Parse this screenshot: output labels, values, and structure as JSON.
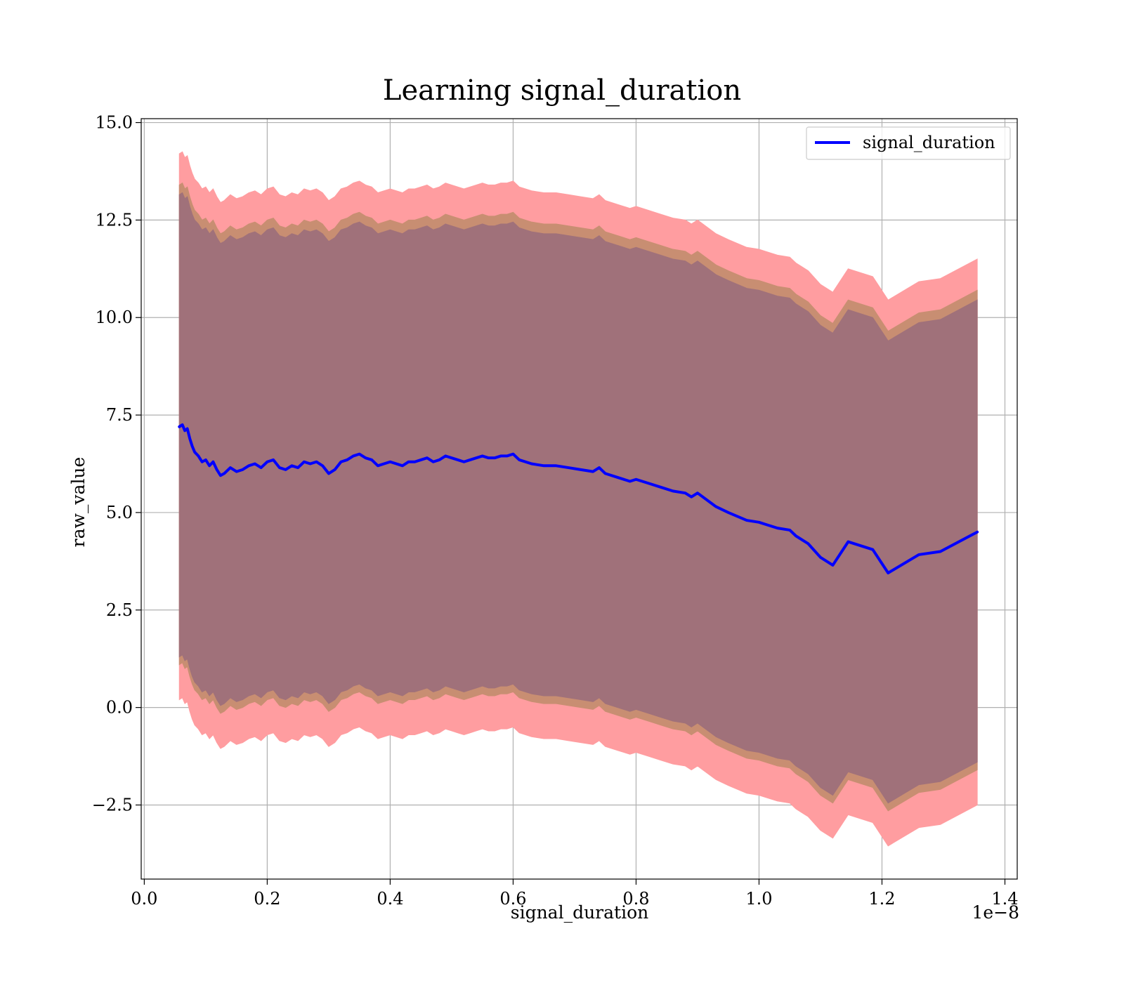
{
  "chart_data": {
    "type": "line",
    "title": "Learning signal_duration",
    "xlabel": "signal_duration",
    "ylabel": "raw_value",
    "x_offset_label": "1e−8",
    "xlim": [
      -0.005,
      1.42
    ],
    "ylim": [
      -4.4,
      15.1
    ],
    "x_ticks": [
      {
        "value": 0.0,
        "label": "0.0"
      },
      {
        "value": 0.2,
        "label": "0.2"
      },
      {
        "value": 0.4,
        "label": "0.4"
      },
      {
        "value": 0.6,
        "label": "0.6"
      },
      {
        "value": 0.8,
        "label": "0.8"
      },
      {
        "value": 1.0,
        "label": "1.0"
      },
      {
        "value": 1.2,
        "label": "1.2"
      },
      {
        "value": 1.4,
        "label": "1.4"
      }
    ],
    "y_ticks": [
      {
        "value": -2.5,
        "label": "−2.5"
      },
      {
        "value": 0.0,
        "label": "0.0"
      },
      {
        "value": 2.5,
        "label": "2.5"
      },
      {
        "value": 5.0,
        "label": "5.0"
      },
      {
        "value": 7.5,
        "label": "7.5"
      },
      {
        "value": 10.0,
        "label": "10.0"
      },
      {
        "value": 12.5,
        "label": "12.5"
      },
      {
        "value": 15.0,
        "label": "15.0"
      }
    ],
    "grid": true,
    "legend": {
      "position": "top-right",
      "entries": [
        "signal_duration"
      ]
    },
    "colors": {
      "line": "#0000ff",
      "band_outer": "#ff9da0",
      "band_middle": "#c88e72",
      "band_inner": "#a0717a"
    },
    "series": [
      {
        "name": "signal_duration",
        "x": [
          0.057,
          0.062,
          0.066,
          0.07,
          0.074,
          0.078,
          0.082,
          0.088,
          0.094,
          0.1,
          0.106,
          0.112,
          0.118,
          0.124,
          0.13,
          0.14,
          0.15,
          0.16,
          0.17,
          0.18,
          0.19,
          0.2,
          0.21,
          0.22,
          0.23,
          0.24,
          0.25,
          0.26,
          0.27,
          0.28,
          0.29,
          0.3,
          0.31,
          0.32,
          0.33,
          0.34,
          0.35,
          0.36,
          0.37,
          0.38,
          0.39,
          0.4,
          0.41,
          0.42,
          0.43,
          0.44,
          0.45,
          0.46,
          0.47,
          0.48,
          0.49,
          0.5,
          0.51,
          0.52,
          0.53,
          0.54,
          0.55,
          0.56,
          0.57,
          0.58,
          0.59,
          0.6,
          0.61,
          0.63,
          0.65,
          0.67,
          0.69,
          0.71,
          0.73,
          0.74,
          0.75,
          0.77,
          0.79,
          0.8,
          0.82,
          0.84,
          0.86,
          0.88,
          0.89,
          0.9,
          0.93,
          0.95,
          0.98,
          1.0,
          1.01,
          1.03,
          1.05,
          1.06,
          1.08,
          1.1,
          1.12,
          1.145,
          1.185,
          1.21,
          1.26,
          1.295,
          1.355
        ],
        "values": [
          7.2,
          7.25,
          7.1,
          7.15,
          6.9,
          6.7,
          6.55,
          6.45,
          6.3,
          6.35,
          6.2,
          6.3,
          6.1,
          5.95,
          6.0,
          6.15,
          6.05,
          6.1,
          6.2,
          6.25,
          6.15,
          6.3,
          6.35,
          6.15,
          6.1,
          6.2,
          6.15,
          6.3,
          6.25,
          6.3,
          6.2,
          6.0,
          6.1,
          6.3,
          6.35,
          6.45,
          6.5,
          6.4,
          6.35,
          6.2,
          6.25,
          6.3,
          6.25,
          6.2,
          6.3,
          6.3,
          6.35,
          6.4,
          6.3,
          6.35,
          6.45,
          6.4,
          6.35,
          6.3,
          6.35,
          6.4,
          6.45,
          6.4,
          6.4,
          6.45,
          6.45,
          6.5,
          6.35,
          6.25,
          6.2,
          6.2,
          6.15,
          6.1,
          6.05,
          6.15,
          6.0,
          5.9,
          5.8,
          5.85,
          5.75,
          5.65,
          5.55,
          5.5,
          5.4,
          5.5,
          5.15,
          5.0,
          4.8,
          4.75,
          4.7,
          4.6,
          4.55,
          4.4,
          4.2,
          3.85,
          3.65,
          4.25,
          4.05,
          3.45,
          3.92,
          4.0,
          4.5
        ],
        "bands": [
          {
            "name": "outer",
            "lower_offset": -7.0,
            "upper_offset": 7.0
          },
          {
            "name": "middle",
            "lower_offset": -6.1,
            "upper_offset": 6.2
          },
          {
            "name": "inner",
            "lower_offset": -5.9,
            "upper_offset": 5.95
          }
        ]
      }
    ]
  }
}
